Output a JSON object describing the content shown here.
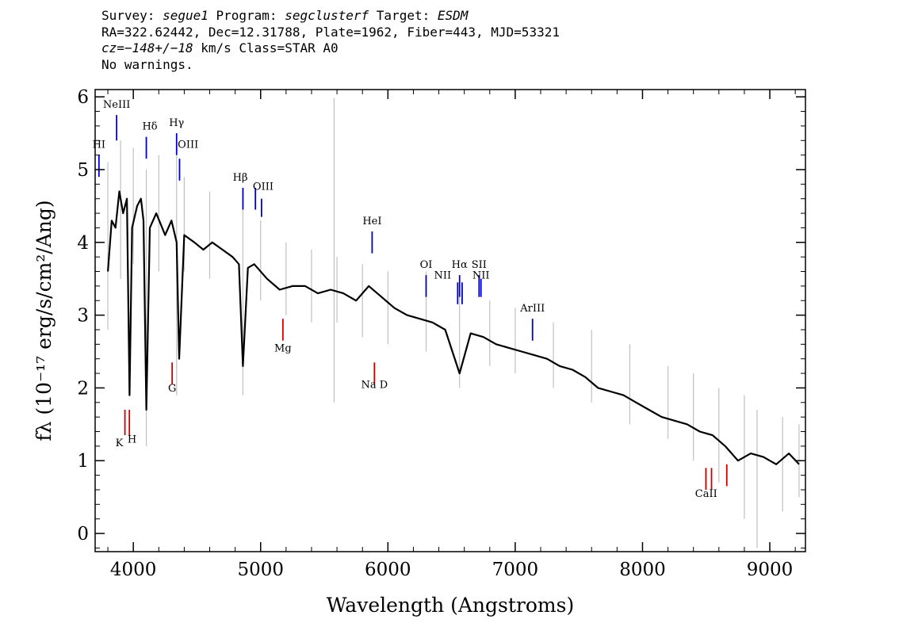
{
  "header": {
    "line1": {
      "survey_label": "Survey: ",
      "survey": "segue1",
      "program_label": " Program: ",
      "program": "segclusterf",
      "target_label": " Target: ",
      "target": "ESDM"
    },
    "line2": "RA=322.62442, Dec=12.31788, Plate=1962, Fiber=443, MJD=53321",
    "line3": {
      "cz": "cz=−148+/−18",
      "rest": " km/s Class=STAR A0"
    },
    "line4": "No warnings."
  },
  "colors": {
    "flux": "#000000",
    "error_band": "#c0c0c0",
    "emission_marker": "#0000cc",
    "absorption_marker": "#cc0000"
  },
  "chart_data": {
    "type": "line",
    "xlabel": "Wavelength (Angstroms)",
    "ylabel": "fλ (10⁻¹⁷ erg/s/cm²/Ang)",
    "xlim": [
      3700,
      9280
    ],
    "ylim": [
      -0.25,
      6.1
    ],
    "x_ticks": [
      4000,
      5000,
      6000,
      7000,
      8000,
      9000
    ],
    "y_ticks": [
      0,
      1,
      2,
      3,
      4,
      5,
      6
    ],
    "grid": false,
    "series": [
      {
        "style": "black thick line (smoothed flux)",
        "x": [
          3800,
          3830,
          3860,
          3890,
          3920,
          3950,
          3970,
          3990,
          4030,
          4060,
          4080,
          4102,
          4130,
          4180,
          4250,
          4300,
          4340,
          4360,
          4400,
          4480,
          4550,
          4620,
          4700,
          4780,
          4830,
          4861,
          4900,
          4950,
          5050,
          5150,
          5250,
          5350,
          5450,
          5550,
          5650,
          5750,
          5850,
          5950,
          6050,
          6150,
          6250,
          6350,
          6450,
          6563,
          6650,
          6750,
          6850,
          6950,
          7050,
          7150,
          7250,
          7350,
          7450,
          7550,
          7650,
          7750,
          7850,
          7950,
          8050,
          8150,
          8250,
          8350,
          8450,
          8550,
          8650,
          8750,
          8850,
          8950,
          9050,
          9150,
          9230
        ],
        "y": [
          3.6,
          4.3,
          4.2,
          4.7,
          4.4,
          4.6,
          1.9,
          4.2,
          4.5,
          4.6,
          4.3,
          1.7,
          4.2,
          4.4,
          4.1,
          4.3,
          4.0,
          2.4,
          4.1,
          4.0,
          3.9,
          4.0,
          3.9,
          3.8,
          3.7,
          2.3,
          3.65,
          3.7,
          3.5,
          3.35,
          3.4,
          3.4,
          3.3,
          3.35,
          3.3,
          3.2,
          3.4,
          3.25,
          3.1,
          3.0,
          2.95,
          2.9,
          2.8,
          2.2,
          2.75,
          2.7,
          2.6,
          2.55,
          2.5,
          2.45,
          2.4,
          2.3,
          2.25,
          2.15,
          2.0,
          1.95,
          1.9,
          1.8,
          1.7,
          1.6,
          1.55,
          1.5,
          1.4,
          1.35,
          1.2,
          1.0,
          1.1,
          1.05,
          0.95,
          1.1,
          0.95
        ]
      },
      {
        "style": "grey noisy band (raw flux)",
        "x": [
          3800,
          3900,
          4000,
          4102,
          4200,
          4340,
          4400,
          4600,
          4861,
          5000,
          5200,
          5400,
          5577,
          5600,
          5800,
          6000,
          6300,
          6563,
          6800,
          7000,
          7300,
          7600,
          7900,
          8200,
          8400,
          8600,
          8800,
          8900,
          9100,
          9230
        ],
        "low": [
          2.8,
          3.5,
          3.7,
          1.2,
          3.6,
          1.9,
          3.6,
          3.5,
          1.9,
          3.2,
          3.0,
          2.9,
          1.8,
          2.9,
          2.7,
          2.6,
          2.5,
          2.0,
          2.3,
          2.2,
          2.0,
          1.8,
          1.5,
          1.3,
          1.0,
          0.7,
          0.2,
          -0.2,
          0.3,
          0.5
        ],
        "high": [
          5.1,
          5.4,
          5.3,
          5.0,
          5.2,
          5.3,
          4.9,
          4.7,
          4.5,
          4.3,
          4.0,
          3.9,
          5.98,
          3.8,
          3.7,
          3.6,
          3.6,
          3.4,
          3.2,
          3.1,
          2.9,
          2.8,
          2.6,
          2.3,
          2.2,
          2.0,
          1.9,
          1.7,
          1.6,
          1.5
        ]
      }
    ],
    "line_markers": [
      {
        "label": "HI",
        "x": 3730,
        "y0": 4.9,
        "y1": 5.2,
        "kind": "emission",
        "lx": 3730,
        "ly": 5.3
      },
      {
        "label": "NeIII",
        "x": 3869,
        "y0": 5.4,
        "y1": 5.75,
        "kind": "emission",
        "lx": 3869,
        "ly": 5.85
      },
      {
        "label": "Hδ",
        "x": 4102,
        "y0": 5.15,
        "y1": 5.45,
        "kind": "emission",
        "lx": 4130,
        "ly": 5.55
      },
      {
        "label": "Hγ",
        "x": 4340,
        "y0": 5.2,
        "y1": 5.5,
        "kind": "emission",
        "lx": 4340,
        "ly": 5.6
      },
      {
        "label": "OIII",
        "x": 4363,
        "y0": 4.85,
        "y1": 5.15,
        "kind": "emission",
        "lx": 4430,
        "ly": 5.3
      },
      {
        "label": "Hβ",
        "x": 4861,
        "y0": 4.45,
        "y1": 4.75,
        "kind": "emission",
        "lx": 4840,
        "ly": 4.85
      },
      {
        "label": "OIII",
        "x": 4959,
        "y0": 4.45,
        "y1": 4.75,
        "kind": "emission",
        "lx": 5020,
        "ly": 4.72
      },
      {
        "label": "",
        "x": 5007,
        "y0": 4.35,
        "y1": 4.6,
        "kind": "emission",
        "lx": 5007,
        "ly": 4.6
      },
      {
        "label": "HeI",
        "x": 5876,
        "y0": 3.85,
        "y1": 4.15,
        "kind": "emission",
        "lx": 5876,
        "ly": 4.25
      },
      {
        "label": "OI",
        "x": 6300,
        "y0": 3.25,
        "y1": 3.55,
        "kind": "emission",
        "lx": 6300,
        "ly": 3.65
      },
      {
        "label": "NII",
        "x": 6548,
        "y0": 3.15,
        "y1": 3.45,
        "kind": "emission",
        "lx": 6430,
        "ly": 3.5
      },
      {
        "label": "Hα",
        "x": 6563,
        "y0": 3.25,
        "y1": 3.55,
        "kind": "emission",
        "lx": 6563,
        "ly": 3.65
      },
      {
        "label": "",
        "x": 6583,
        "y0": 3.15,
        "y1": 3.45,
        "kind": "emission",
        "lx": 6583,
        "ly": 3.45
      },
      {
        "label": "SII",
        "x": 6716,
        "y0": 3.25,
        "y1": 3.55,
        "kind": "emission",
        "lx": 6716,
        "ly": 3.65
      },
      {
        "label": "NII",
        "x": 6731,
        "y0": 3.25,
        "y1": 3.5,
        "kind": "emission",
        "lx": 6731,
        "ly": 3.5
      },
      {
        "label": "ArIII",
        "x": 7136,
        "y0": 2.65,
        "y1": 2.95,
        "kind": "emission",
        "lx": 7136,
        "ly": 3.05
      },
      {
        "label": "K",
        "x": 3934,
        "y0": 1.35,
        "y1": 1.7,
        "kind": "absorption",
        "lx": 3890,
        "ly": 1.2
      },
      {
        "label": "H",
        "x": 3969,
        "y0": 1.35,
        "y1": 1.7,
        "kind": "absorption",
        "lx": 3990,
        "ly": 1.25
      },
      {
        "label": "G",
        "x": 4305,
        "y0": 2.05,
        "y1": 2.35,
        "kind": "absorption",
        "lx": 4305,
        "ly": 1.95
      },
      {
        "label": "Mg",
        "x": 5175,
        "y0": 2.65,
        "y1": 2.95,
        "kind": "absorption",
        "lx": 5175,
        "ly": 2.5
      },
      {
        "label": "Na D",
        "x": 5894,
        "y0": 2.05,
        "y1": 2.35,
        "kind": "absorption",
        "lx": 5894,
        "ly": 2.0
      },
      {
        "label": "CaII",
        "x": 8498,
        "y0": 0.6,
        "y1": 0.9,
        "kind": "absorption",
        "lx": 8500,
        "ly": 0.5
      },
      {
        "label": "",
        "x": 8542,
        "y0": 0.6,
        "y1": 0.9,
        "kind": "absorption",
        "lx": 8542,
        "ly": 0.5
      },
      {
        "label": "",
        "x": 8662,
        "y0": 0.65,
        "y1": 0.95,
        "kind": "absorption",
        "lx": 8662,
        "ly": 0.5
      }
    ]
  }
}
